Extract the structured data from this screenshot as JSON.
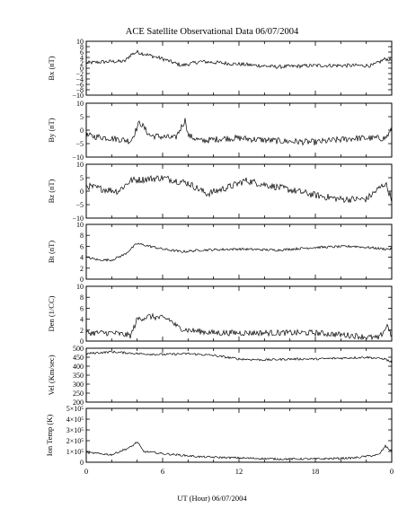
{
  "figure": {
    "title": "ACE Satellite Observational Data   06/07/2004",
    "xlabel": "UT (Hour)  06/07/2004",
    "x_ticks": [
      "0",
      "6",
      "12",
      "18",
      "0"
    ]
  },
  "chart_data": [
    {
      "type": "line",
      "ylabel": "Bx (nT)",
      "ylim": [
        -10,
        10
      ],
      "yticks": [
        -10,
        -8,
        -6,
        -4,
        -2,
        0,
        2,
        4,
        6,
        8,
        10
      ],
      "ytick_labels": [
        "−10",
        "−8",
        "−6",
        "−4",
        "−2",
        "0",
        "2",
        "4",
        "6",
        "8",
        "10"
      ],
      "x": [
        0,
        2,
        3,
        3.5,
        4,
        6,
        7.5,
        9,
        12,
        15,
        18,
        21,
        22.5,
        23.5,
        24
      ],
      "y": [
        2,
        2.5,
        2.5,
        5,
        6,
        3.5,
        1,
        2.5,
        1.5,
        0.5,
        1,
        1,
        1,
        3.5,
        3
      ]
    },
    {
      "type": "line",
      "ylabel": "By (nT)",
      "ylim": [
        -10,
        10
      ],
      "yticks": [
        -10,
        -5,
        0,
        5,
        10
      ],
      "ytick_labels": [
        "−10",
        "−5",
        "0",
        "5",
        "10"
      ],
      "x": [
        0,
        2,
        3.5,
        4.2,
        5,
        7,
        7.8,
        8,
        9,
        11,
        12,
        15,
        18,
        21,
        22.5,
        23.5,
        24
      ],
      "y": [
        -2,
        -3,
        -4,
        3,
        -2,
        -3,
        4,
        -2,
        -4,
        -3,
        -3,
        -4,
        -4.5,
        -3,
        -3,
        -3,
        0
      ]
    },
    {
      "type": "line",
      "ylabel": "Bz (nT)",
      "ylim": [
        -10,
        10
      ],
      "yticks": [
        -10,
        -5,
        0,
        5,
        10
      ],
      "ytick_labels": [
        "−10",
        "−5",
        "0",
        "5",
        "10"
      ],
      "x": [
        0,
        1,
        2.5,
        3.5,
        6,
        8,
        9.5,
        11.5,
        12.5,
        15,
        18,
        20,
        22,
        23.5,
        24
      ],
      "y": [
        2,
        1,
        0,
        4,
        5,
        3,
        -1,
        2,
        4,
        1.5,
        -1.5,
        -3,
        -3,
        3,
        -3
      ]
    },
    {
      "type": "line",
      "ylabel": "Bt (nT)",
      "ylim": [
        0,
        10
      ],
      "yticks": [
        0,
        2,
        4,
        6,
        8,
        10
      ],
      "ytick_labels": [
        "0",
        "2",
        "4",
        "6",
        "8",
        "10"
      ],
      "x": [
        0,
        1,
        2,
        3,
        3.5,
        4,
        6,
        7.5,
        9,
        12,
        15,
        18,
        21,
        23.5,
        24
      ],
      "y": [
        4,
        3.5,
        3.5,
        4.5,
        5.5,
        6.5,
        5.5,
        5,
        5.3,
        5.5,
        5.3,
        5.8,
        6,
        5.5,
        5.5
      ]
    },
    {
      "type": "line",
      "ylabel": "Den (1/CC)",
      "ylim": [
        0,
        10
      ],
      "yticks": [
        0,
        2,
        4,
        6,
        8,
        10
      ],
      "ytick_labels": [
        "0",
        "2",
        "4",
        "6",
        "8",
        "10"
      ],
      "x": [
        0,
        2,
        3.5,
        4,
        5,
        6.5,
        7.2,
        8,
        10,
        12,
        15,
        18,
        21,
        23,
        23.7,
        24
      ],
      "y": [
        1.5,
        1.5,
        1,
        4,
        4.5,
        4,
        2.5,
        2,
        1.5,
        1.5,
        1.5,
        1.5,
        1,
        0.5,
        3,
        0.5
      ]
    },
    {
      "type": "line",
      "ylabel": "Vel (Km/sec)",
      "ylim": [
        200,
        500
      ],
      "yticks": [
        200,
        250,
        300,
        350,
        400,
        450,
        500
      ],
      "ytick_labels": [
        "200",
        "250",
        "300",
        "350",
        "400",
        "450",
        "500"
      ],
      "x": [
        0,
        2,
        4,
        6,
        8,
        10,
        12,
        14,
        16,
        18,
        20,
        22,
        23.5,
        24
      ],
      "y": [
        470,
        480,
        470,
        465,
        470,
        460,
        440,
        435,
        440,
        440,
        445,
        450,
        440,
        420
      ]
    },
    {
      "type": "line",
      "ylabel": "Ion Temp (K)",
      "ylim": [
        0,
        500000
      ],
      "yticks": [
        0,
        100000,
        200000,
        300000,
        400000,
        500000
      ],
      "ytick_labels": [
        "0",
        "1×10⁵",
        "2×10⁵",
        "3×10⁵",
        "4×10⁵",
        "5×10⁵"
      ],
      "x": [
        0,
        2,
        3.5,
        4,
        4.5,
        6,
        9,
        12,
        15,
        18,
        21,
        23,
        23.5,
        24
      ],
      "y": [
        90000,
        70000,
        140000,
        190000,
        100000,
        80000,
        50000,
        40000,
        30000,
        30000,
        40000,
        70000,
        150000,
        100000
      ]
    }
  ]
}
